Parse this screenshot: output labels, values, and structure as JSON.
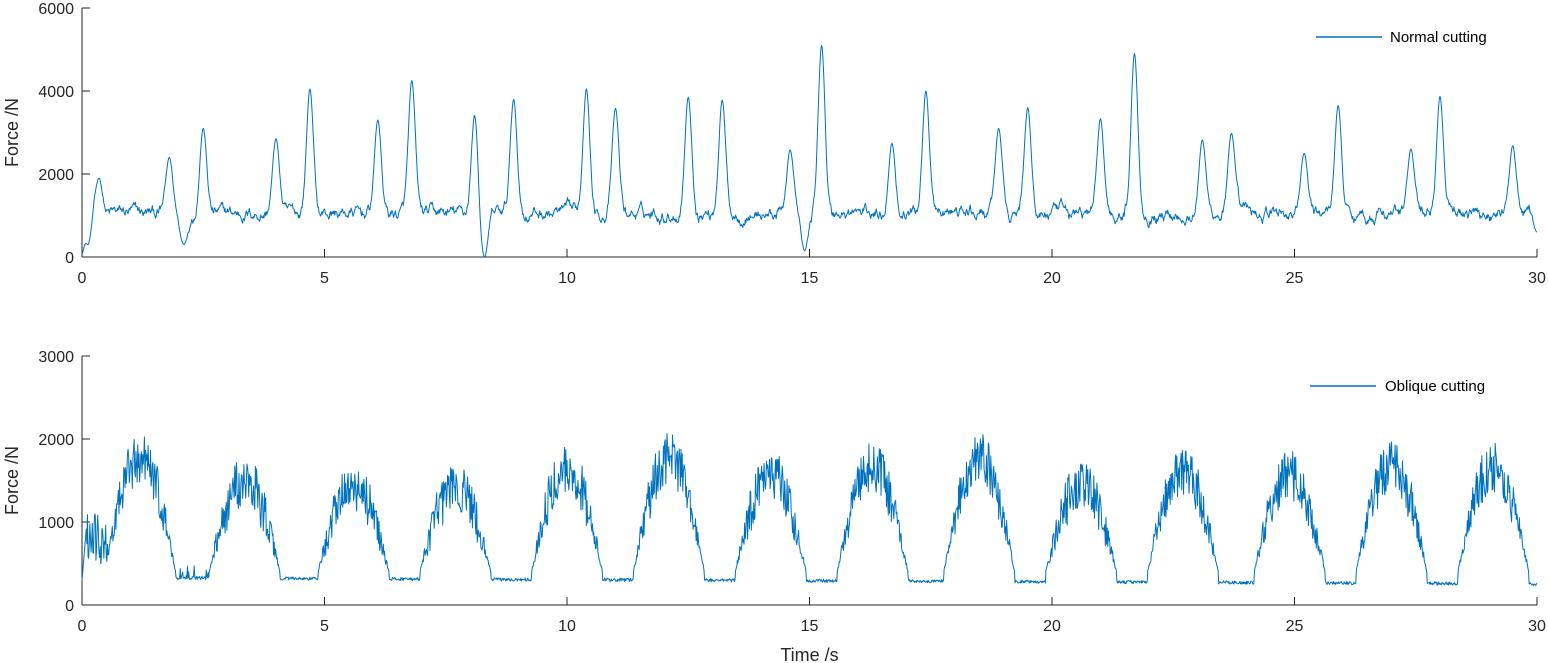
{
  "chart_data": [
    {
      "type": "line",
      "title": "",
      "xlabel": "",
      "ylabel": "Force /N",
      "xlim": [
        0,
        30
      ],
      "ylim": [
        0,
        6000
      ],
      "xticks": [
        0,
        5,
        10,
        15,
        20,
        25,
        30
      ],
      "yticks": [
        0,
        2000,
        4000,
        6000
      ],
      "grid": false,
      "legend_position": "top-right",
      "series": [
        {
          "name": "Normal cutting",
          "color": "#0072BD",
          "baseline_range": [
            600,
            1500
          ],
          "x": [
            0,
            0.12,
            0.35,
            1.8,
            2.1,
            2.5,
            4.0,
            4.7,
            6.1,
            6.8,
            8.1,
            8.3,
            8.9,
            10.4,
            11.0,
            12.5,
            13.2,
            14.6,
            14.9,
            15.25,
            16.7,
            17.4,
            18.9,
            19.5,
            21.0,
            21.7,
            23.1,
            23.7,
            25.2,
            25.9,
            27.4,
            28.0,
            29.5,
            30.0
          ],
          "y": [
            0,
            300,
            1900,
            2400,
            300,
            3100,
            2850,
            4050,
            3300,
            4250,
            3450,
            0,
            3800,
            4050,
            3580,
            3850,
            3780,
            2580,
            150,
            5100,
            2740,
            4000,
            3100,
            3600,
            3330,
            4900,
            2820,
            2980,
            2500,
            3650,
            2600,
            3870,
            2680,
            600
          ]
        }
      ]
    },
    {
      "type": "line",
      "title": "",
      "xlabel": "Time /s",
      "ylabel": "Force /N",
      "xlim": [
        0,
        30
      ],
      "ylim": [
        0,
        3000
      ],
      "xticks": [
        0,
        5,
        10,
        15,
        20,
        25,
        30
      ],
      "yticks": [
        0,
        1000,
        2000,
        3000
      ],
      "grid": false,
      "legend_position": "top-right",
      "series": [
        {
          "name": "Oblique cutting",
          "color": "#0072BD",
          "cycle_period_s": 2.15,
          "x": [
            0,
            0.1,
            0.9,
            1.2,
            1.95,
            3.35,
            5.6,
            7.7,
            10.0,
            12.1,
            14.2,
            16.3,
            18.5,
            20.6,
            22.7,
            24.9,
            27.0,
            29.1,
            30.0
          ],
          "y": [
            300,
            1050,
            750,
            1980,
            350,
            1700,
            1620,
            1600,
            1870,
            1970,
            1770,
            1870,
            1970,
            1650,
            1830,
            1760,
            1880,
            1860,
            260
          ]
        }
      ]
    }
  ]
}
